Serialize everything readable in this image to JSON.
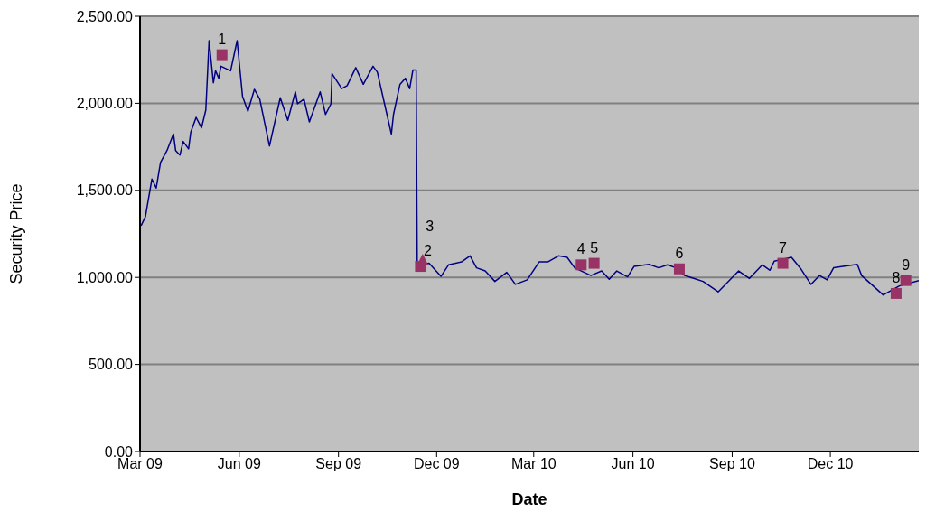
{
  "chart_data": {
    "type": "line",
    "xlabel": "Date",
    "ylabel": "Security Price",
    "xlim": [
      "2009-03-01",
      "2011-02-21"
    ],
    "xticks": [
      {
        "value": "2009-03-01",
        "label": "Mar 09"
      },
      {
        "value": "2009-06-01",
        "label": "Jun 09"
      },
      {
        "value": "2009-09-01",
        "label": "Sep 09"
      },
      {
        "value": "2009-12-01",
        "label": "Dec 09"
      },
      {
        "value": "2010-03-01",
        "label": "Mar 10"
      },
      {
        "value": "2010-06-01",
        "label": "Jun 10"
      },
      {
        "value": "2010-09-01",
        "label": "Sep 10"
      },
      {
        "value": "2010-12-01",
        "label": "Dec 10"
      }
    ],
    "ylim": [
      0,
      2500
    ],
    "yticks": [
      {
        "value": 0,
        "label": "0.00"
      },
      {
        "value": 500,
        "label": "500.00"
      },
      {
        "value": 1000,
        "label": "1,000.00"
      },
      {
        "value": 1500,
        "label": "1,500.00"
      },
      {
        "value": 2000,
        "label": "2,000.00"
      },
      {
        "value": 2500,
        "label": "2,500.00"
      }
    ],
    "grid": "y",
    "annotations": [
      {
        "text": "1",
        "x": "2009-05-16",
        "y": 2279
      },
      {
        "text": "2",
        "x": "2009-11-16",
        "y": 1063
      },
      {
        "text": "3",
        "x": "2009-11-18",
        "y": 1100
      },
      {
        "text": "4",
        "x": "2010-04-14",
        "y": 1072
      },
      {
        "text": "5",
        "x": "2010-04-26",
        "y": 1081
      },
      {
        "text": "6",
        "x": "2010-07-14",
        "y": 1049
      },
      {
        "text": "7",
        "x": "2010-10-18",
        "y": 1081
      },
      {
        "text": "8",
        "x": "2011-01-31",
        "y": 908
      },
      {
        "text": "9",
        "x": "2011-02-09",
        "y": 982
      }
    ],
    "series": [
      {
        "color": "#000080",
        "marker": "none",
        "x": [
          "2009-03-02",
          "2009-03-06",
          "2009-03-12",
          "2009-03-16",
          "2009-03-20",
          "2009-03-26",
          "2009-04-01",
          "2009-04-03",
          "2009-04-07",
          "2009-04-10",
          "2009-04-15",
          "2009-04-17",
          "2009-04-22",
          "2009-04-27",
          "2009-05-01",
          "2009-05-04",
          "2009-05-08",
          "2009-05-10",
          "2009-05-13",
          "2009-05-15",
          "2009-05-24",
          "2009-05-30",
          "2009-06-04",
          "2009-06-09",
          "2009-06-15",
          "2009-06-20",
          "2009-06-29",
          "2009-07-09",
          "2009-07-16",
          "2009-07-23",
          "2009-07-25",
          "2009-07-31",
          "2009-08-05",
          "2009-08-15",
          "2009-08-20",
          "2009-08-25",
          "2009-08-26",
          "2009-09-04",
          "2009-09-09",
          "2009-09-17",
          "2009-09-24",
          "2009-10-03",
          "2009-10-07",
          "2009-10-14",
          "2009-10-20",
          "2009-10-22",
          "2009-10-28",
          "2009-11-02",
          "2009-11-06",
          "2009-11-09",
          "2009-11-12",
          "2009-11-13",
          "2009-11-24",
          "2009-12-05",
          "2009-12-12",
          "2009-12-24",
          "2010-01-01",
          "2010-01-07",
          "2010-01-15",
          "2010-01-24",
          "2010-02-04",
          "2010-02-12",
          "2010-02-23",
          "2010-03-06",
          "2010-03-14",
          "2010-03-24",
          "2010-04-01",
          "2010-04-08",
          "2010-04-23",
          "2010-05-03",
          "2010-05-10",
          "2010-05-17",
          "2010-05-27",
          "2010-06-02",
          "2010-06-16",
          "2010-06-25",
          "2010-07-03",
          "2010-07-11",
          "2010-07-19",
          "2010-08-05",
          "2010-08-19",
          "2010-09-07",
          "2010-09-17",
          "2010-09-29",
          "2010-10-06",
          "2010-10-10",
          "2010-10-26",
          "2010-11-04",
          "2010-11-13",
          "2010-11-21",
          "2010-11-28",
          "2010-12-04",
          "2010-12-26",
          "2010-12-30",
          "2011-01-19",
          "2011-02-03",
          "2011-02-21"
        ],
        "values": [
          1297,
          1349,
          1565,
          1513,
          1660,
          1729,
          1824,
          1729,
          1703,
          1781,
          1738,
          1833,
          1919,
          1859,
          1962,
          2360,
          2118,
          2187,
          2144,
          2213,
          2187,
          2360,
          2040,
          1954,
          2080,
          2023,
          1755,
          2032,
          1902,
          2066,
          1997,
          2023,
          1893,
          2066,
          1936,
          1997,
          2170,
          2084,
          2101,
          2205,
          2109,
          2213,
          2179,
          1988,
          1824,
          1936,
          2109,
          2144,
          2084,
          2192,
          2192,
          1065,
          1081,
          1006,
          1072,
          1089,
          1124,
          1055,
          1037,
          977,
          1029,
          960,
          986,
          1089,
          1089,
          1124,
          1115,
          1055,
          1011,
          1037,
          989,
          1037,
          1003,
          1063,
          1075,
          1055,
          1072,
          1055,
          1011,
          977,
          917,
          1037,
          994,
          1072,
          1041,
          1093,
          1115,
          1046,
          960,
          1011,
          986,
          1055,
          1075,
          1011,
          899,
          951,
          982
        ]
      },
      {
        "type": "scatter",
        "color": "#993366",
        "marker": "square",
        "x": [
          "2009-05-16",
          "2009-11-16",
          "2010-04-14",
          "2010-04-26",
          "2010-07-14",
          "2010-10-18",
          "2011-01-31",
          "2011-02-09"
        ],
        "values": [
          2279,
          1063,
          1072,
          1081,
          1049,
          1081,
          908,
          982
        ]
      },
      {
        "type": "scatter",
        "color": "#993366",
        "marker": "triangle",
        "x": [
          "2009-11-18"
        ],
        "values": [
          1100
        ]
      }
    ]
  }
}
